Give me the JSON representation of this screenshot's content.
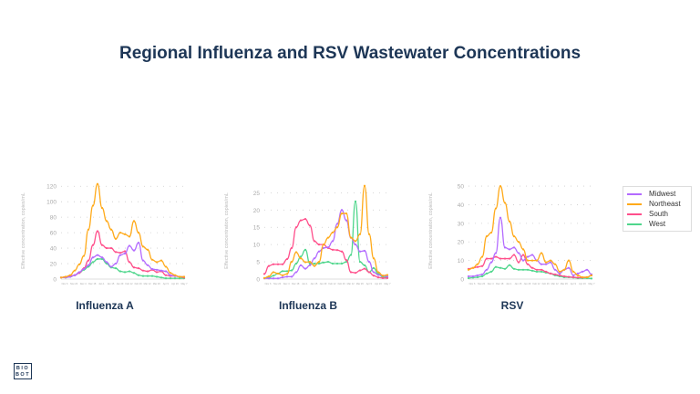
{
  "title": "Regional Influenza and RSV Wastewater Concentrations",
  "logo": {
    "line1": "BIO",
    "line2": "BOT"
  },
  "legend": [
    {
      "name": "Midwest",
      "color": "#b36bff"
    },
    {
      "name": "Northeast",
      "color": "#ffaa1a"
    },
    {
      "name": "South",
      "color": "#ff4f8b"
    },
    {
      "name": "West",
      "color": "#4fd68c"
    }
  ],
  "chart_data": [
    {
      "type": "line",
      "title": "Influenza A",
      "ylabel": "Effective concentration, copies/mL",
      "ylim": [
        0,
        125
      ],
      "yticks": [
        0,
        20,
        40,
        60,
        80,
        100,
        120
      ],
      "grid": "horizontal dotted",
      "xticks": [
        "Nov 6",
        "Nov 20",
        "Dec 4",
        "Dec 18",
        "Jan 1",
        "Jan 15",
        "Jan 29",
        "Feb 12",
        "Feb 26",
        "Mar 12",
        "Mar 26",
        "Apr 9",
        "Apr 23",
        "May 7"
      ],
      "series": [
        {
          "name": "Midwest",
          "values": [
            2,
            2,
            3,
            5,
            9,
            13,
            18,
            28,
            31,
            28,
            22,
            16,
            20,
            31,
            33,
            43,
            37,
            47,
            24,
            18,
            13,
            12,
            11,
            10,
            5,
            4,
            3,
            3
          ]
        },
        {
          "name": "Northeast",
          "values": [
            2,
            3,
            5,
            11,
            19,
            30,
            64,
            95,
            123,
            92,
            75,
            64,
            52,
            60,
            58,
            55,
            75,
            60,
            42,
            38,
            25,
            22,
            24,
            16,
            8,
            5,
            3,
            3
          ]
        },
        {
          "name": "South",
          "values": [
            2,
            3,
            4,
            5,
            8,
            14,
            24,
            44,
            62,
            44,
            40,
            40,
            35,
            34,
            36,
            22,
            15,
            14,
            11,
            10,
            12,
            9,
            10,
            5,
            4,
            4,
            3,
            2
          ]
        },
        {
          "name": "West",
          "values": [
            2,
            2,
            3,
            5,
            8,
            12,
            16,
            22,
            26,
            26,
            20,
            15,
            14,
            10,
            9,
            10,
            8,
            5,
            4,
            4,
            4,
            3,
            2,
            1,
            1,
            1,
            1,
            1
          ]
        }
      ]
    },
    {
      "type": "line",
      "title": "Influenza B",
      "ylabel": "Effective concentration, copies/mL",
      "ylim": [
        0,
        28
      ],
      "yticks": [
        0,
        5,
        10,
        15,
        20,
        25
      ],
      "grid": "horizontal dotted",
      "xticks": [
        "Nov 6",
        "Nov 20",
        "Dec 4",
        "Dec 18",
        "Jan 1",
        "Jan 15",
        "Jan 29",
        "Feb 12",
        "Feb 26",
        "Mar 12",
        "Mar 26",
        "Apr 9",
        "Apr 23",
        "May 7"
      ],
      "series": [
        {
          "name": "Midwest",
          "values": [
            0.2,
            0.2,
            0.2,
            0.2,
            0.5,
            0.7,
            0.7,
            2,
            4,
            3,
            4,
            6,
            8,
            9,
            9.2,
            11,
            16,
            20,
            17,
            12,
            10,
            8,
            8.2,
            5,
            2,
            1.2,
            1,
            0.8
          ]
        },
        {
          "name": "Northeast",
          "values": [
            0.3,
            0.8,
            2,
            1.6,
            1.1,
            1.5,
            5,
            7.8,
            6,
            4.9,
            5,
            3.8,
            5,
            10,
            12,
            13.5,
            15,
            19,
            19,
            12,
            11,
            13,
            27,
            13,
            6,
            2,
            1,
            1.2
          ]
        },
        {
          "name": "South",
          "values": [
            1.5,
            3.8,
            4.3,
            4.3,
            4.3,
            5.8,
            9,
            15,
            17,
            17.4,
            15.5,
            11,
            10,
            10,
            9,
            8.5,
            8.4,
            8,
            5.5,
            2,
            1.8,
            2.5,
            3,
            2,
            1,
            0.5,
            0.3,
            0.3
          ]
        },
        {
          "name": "West",
          "values": [
            0.3,
            0.4,
            1,
            1.6,
            2.3,
            2.3,
            2.5,
            4.5,
            6.5,
            8.5,
            4.5,
            4.5,
            4.5,
            4.8,
            5,
            4.5,
            4.5,
            4.5,
            5,
            7,
            22.5,
            5,
            4,
            2,
            3.2,
            1.5,
            0.6,
            0.5
          ]
        }
      ]
    },
    {
      "type": "line",
      "title": "RSV",
      "ylabel": "Effective concentration, copies/mL",
      "ylim": [
        0,
        52
      ],
      "yticks": [
        0,
        10,
        20,
        30,
        40,
        50
      ],
      "grid": "horizontal dotted",
      "xticks": [
        "Nov 6",
        "Nov 20",
        "Dec 4",
        "Dec 18",
        "Jan 1",
        "Jan 15",
        "Jan 29",
        "Feb 12",
        "Feb 26",
        "Mar 12",
        "Mar 26",
        "Apr 9",
        "Apr 23",
        "May 7"
      ],
      "series": [
        {
          "name": "Midwest",
          "values": [
            1.5,
            1.5,
            2,
            2.5,
            5,
            9,
            14,
            33,
            17,
            16,
            17,
            14,
            10,
            12,
            13,
            10,
            8,
            8,
            9,
            5,
            3,
            5,
            6,
            2,
            3,
            4,
            5,
            2.5
          ]
        },
        {
          "name": "Northeast",
          "values": [
            5,
            6,
            8,
            12,
            23,
            25,
            38,
            50,
            41,
            31,
            23,
            20,
            16,
            10,
            10,
            10,
            14,
            9,
            10,
            8,
            4,
            5,
            10,
            4,
            2,
            1,
            1,
            2
          ]
        },
        {
          "name": "South",
          "values": [
            5.5,
            6,
            6.5,
            7,
            11,
            11,
            12,
            11,
            11,
            11,
            13,
            9,
            13,
            8,
            6,
            5,
            5,
            4,
            3,
            2.5,
            2,
            1.5,
            1.2,
            1,
            0.8,
            0.8,
            1,
            2
          ]
        },
        {
          "name": "West",
          "values": [
            0.5,
            0.8,
            1,
            1.5,
            3,
            4,
            6.5,
            6,
            5.5,
            7.5,
            5.5,
            5,
            5,
            5,
            4.5,
            4,
            4,
            3.5,
            3,
            2,
            1.5,
            1,
            1,
            0.8,
            0.5,
            0.5,
            0.5,
            0.3
          ]
        }
      ]
    }
  ]
}
